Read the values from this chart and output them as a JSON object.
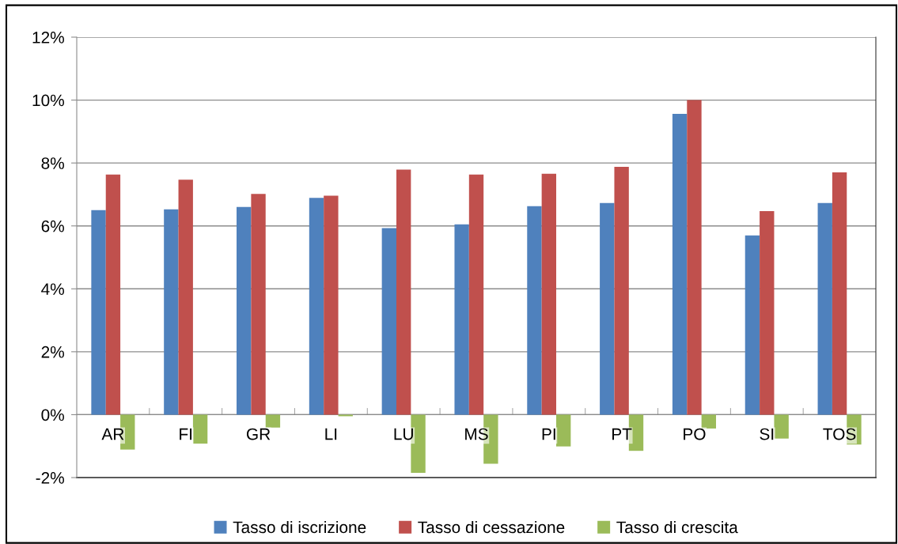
{
  "chart_data": {
    "type": "bar",
    "categories": [
      "AR",
      "FI",
      "GR",
      "LI",
      "LU",
      "MS",
      "PI",
      "PT",
      "PO",
      "SI",
      "TOS"
    ],
    "series": [
      {
        "name": "Tasso di iscrizione",
        "color": "#4f81bd",
        "values": [
          6.5,
          6.53,
          6.6,
          6.89,
          5.93,
          6.05,
          6.63,
          6.73,
          9.56,
          5.7,
          6.73
        ]
      },
      {
        "name": "Tasso di cessazione",
        "color": "#c0504d",
        "values": [
          7.63,
          7.47,
          7.02,
          6.96,
          7.79,
          7.63,
          7.66,
          7.88,
          10.0,
          6.47,
          7.7
        ]
      },
      {
        "name": "Tasso di crescita",
        "color": "#9bbb59",
        "values": [
          -1.11,
          -0.92,
          -0.41,
          -0.05,
          -1.85,
          -1.56,
          -1.01,
          -1.15,
          -0.44,
          -0.76,
          -0.95
        ]
      }
    ],
    "ylim": [
      -2,
      12
    ],
    "yticks": [
      {
        "value": -2,
        "label": "-2%"
      },
      {
        "value": 0,
        "label": "0%"
      },
      {
        "value": 2,
        "label": "2%"
      },
      {
        "value": 4,
        "label": "4%"
      },
      {
        "value": 6,
        "label": "6%"
      },
      {
        "value": 8,
        "label": "8%"
      },
      {
        "value": 10,
        "label": "10%"
      },
      {
        "value": 12,
        "label": "12%"
      }
    ],
    "grid": "y",
    "legend": "bottom"
  }
}
